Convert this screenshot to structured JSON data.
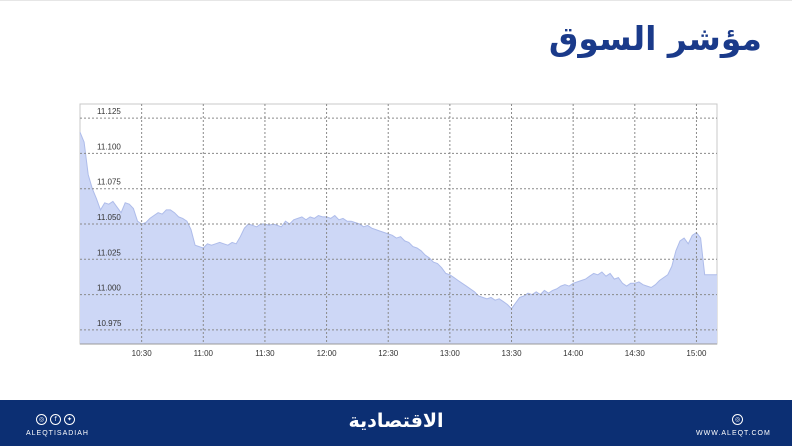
{
  "title": "مؤشر السوق",
  "chart_data": {
    "type": "area",
    "title": "",
    "xlabel": "",
    "ylabel": "",
    "x_ticks": [
      "10:30",
      "11:00",
      "11:30",
      "12:00",
      "12:30",
      "13:00",
      "13:30",
      "14:00",
      "14:30",
      "15:00"
    ],
    "y_ticks": [
      "11.125",
      "11.100",
      "11.075",
      "11.050",
      "11.025",
      "11.000",
      "10.975"
    ],
    "ylim": [
      10.965,
      11.135
    ],
    "xlim": [
      "10:00",
      "15:10"
    ],
    "grid": true,
    "colors": {
      "fill": "#cdd7f6",
      "line": "#aebcea"
    },
    "series": [
      {
        "x": [
          "10:00",
          "10:02",
          "10:04",
          "10:06",
          "10:08",
          "10:10",
          "10:12",
          "10:14",
          "10:16",
          "10:18",
          "10:20",
          "10:22",
          "10:24",
          "10:26",
          "10:28",
          "10:30",
          "10:32",
          "10:34",
          "10:36",
          "10:38",
          "10:40",
          "10:42",
          "10:44",
          "10:46",
          "10:48",
          "10:50",
          "10:52",
          "10:54",
          "10:56",
          "11:00",
          "11:02",
          "11:04",
          "11:06",
          "11:08",
          "11:10",
          "11:12",
          "11:14",
          "11:16",
          "11:18",
          "11:20",
          "11:22",
          "11:24",
          "11:26",
          "11:28",
          "11:30",
          "11:32",
          "11:34",
          "11:36",
          "11:38",
          "11:40",
          "11:42",
          "11:44",
          "11:46",
          "11:48",
          "11:50",
          "11:52",
          "11:54",
          "11:56",
          "11:58",
          "12:00",
          "12:02",
          "12:04",
          "12:06",
          "12:08",
          "12:10",
          "12:12",
          "12:14",
          "12:16",
          "12:18",
          "12:20",
          "12:22",
          "12:24",
          "12:26",
          "12:28",
          "12:30",
          "12:32",
          "12:34",
          "12:36",
          "12:38",
          "12:40",
          "12:42",
          "12:44",
          "12:46",
          "12:48",
          "12:50",
          "12:52",
          "12:54",
          "12:56",
          "12:58",
          "13:00",
          "13:02",
          "13:04",
          "13:06",
          "13:08",
          "13:10",
          "13:12",
          "13:14",
          "13:16",
          "13:18",
          "13:20",
          "13:22",
          "13:24",
          "13:26",
          "13:28",
          "13:30",
          "13:32",
          "13:34",
          "13:36",
          "13:38",
          "13:40",
          "13:42",
          "13:44",
          "13:46",
          "13:48",
          "13:50",
          "13:52",
          "13:54",
          "13:56",
          "13:58",
          "14:00",
          "14:02",
          "14:04",
          "14:06",
          "14:08",
          "14:10",
          "14:12",
          "14:14",
          "14:16",
          "14:18",
          "14:20",
          "14:22",
          "14:24",
          "14:26",
          "14:28",
          "14:30",
          "14:32",
          "14:34",
          "14:36",
          "14:38",
          "14:40",
          "14:42",
          "14:44",
          "14:46",
          "14:48",
          "14:50",
          "14:52",
          "14:54",
          "14:56",
          "14:58",
          "15:00",
          "15:02",
          "15:04",
          "15:06",
          "15:10"
        ],
        "y": [
          11.115,
          11.108,
          11.085,
          11.075,
          11.068,
          11.06,
          11.065,
          11.064,
          11.066,
          11.062,
          11.058,
          11.065,
          11.064,
          11.061,
          11.052,
          11.05,
          11.051,
          11.054,
          11.056,
          11.058,
          11.057,
          11.06,
          11.06,
          11.058,
          11.055,
          11.054,
          11.052,
          11.046,
          11.035,
          11.033,
          11.036,
          11.035,
          11.036,
          11.037,
          11.036,
          11.035,
          11.037,
          11.036,
          11.041,
          11.047,
          11.05,
          11.049,
          11.048,
          11.05,
          11.05,
          11.049,
          11.05,
          11.049,
          11.048,
          11.052,
          11.05,
          11.053,
          11.054,
          11.055,
          11.053,
          11.055,
          11.054,
          11.056,
          11.055,
          11.055,
          11.054,
          11.056,
          11.053,
          11.054,
          11.052,
          11.052,
          11.051,
          11.05,
          11.048,
          11.049,
          11.047,
          11.046,
          11.045,
          11.044,
          11.043,
          11.042,
          11.04,
          11.041,
          11.038,
          11.037,
          11.034,
          11.033,
          11.031,
          11.028,
          11.026,
          11.023,
          11.022,
          11.019,
          11.015,
          11.014,
          11.012,
          11.01,
          11.008,
          11.006,
          11.004,
          11.002,
          10.999,
          10.998,
          10.997,
          10.998,
          10.996,
          10.997,
          10.995,
          10.993,
          10.99,
          10.994,
          10.998,
          10.999,
          11.001,
          11.0,
          11.002,
          11.0,
          11.003,
          11.001,
          11.003,
          11.004,
          11.006,
          11.007,
          11.006,
          11.008,
          11.009,
          11.01,
          11.011,
          11.013,
          11.015,
          11.014,
          11.016,
          11.013,
          11.015,
          11.011,
          11.012,
          11.008,
          11.006,
          11.008,
          11.008,
          11.009,
          11.007,
          11.006,
          11.005,
          11.007,
          11.01,
          11.012,
          11.014,
          11.02,
          11.031,
          11.038,
          11.04,
          11.036,
          11.042,
          11.044,
          11.04,
          11.014,
          11.014,
          11.014
        ]
      }
    ]
  },
  "footer": {
    "handle": "ALEQTISADIAH",
    "brand": "الاقتصادية",
    "website": "WWW.ALEQT.COM",
    "social_icons": [
      "instagram-icon",
      "facebook-icon",
      "twitter-icon"
    ],
    "web_icon": "globe-icon"
  }
}
